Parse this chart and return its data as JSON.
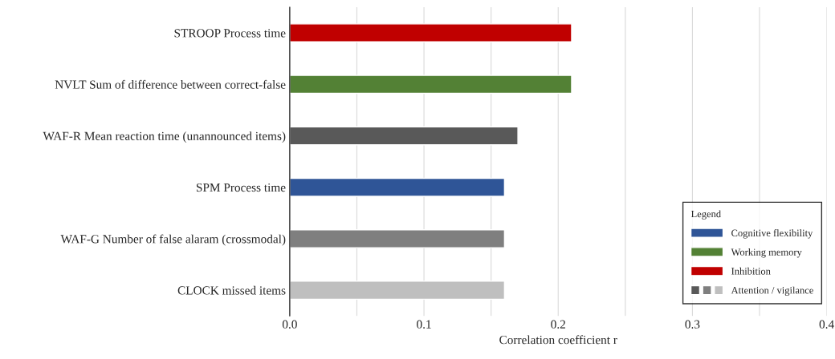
{
  "chart_data": {
    "type": "bar",
    "orientation": "horizontal",
    "categories": [
      "STROOP Process time",
      "NVLT Sum of difference between correct-false",
      "WAF-R Mean reaction time (unannounced items)",
      "SPM Process time",
      "WAF-G Number of false alaram (crossmodal)",
      "CLOCK missed items"
    ],
    "series": [
      {
        "name": "Cognitive flexibility",
        "color": "#2f5597",
        "values": [
          null,
          null,
          null,
          0.16,
          null,
          null
        ]
      },
      {
        "name": "Working memory",
        "color": "#538135",
        "values": [
          null,
          0.21,
          null,
          null,
          null,
          null
        ]
      },
      {
        "name": "Inhibition",
        "color": "#c00000",
        "values": [
          0.21,
          null,
          null,
          null,
          null,
          null
        ]
      },
      {
        "name": "Attention / vigilance",
        "colors": [
          "#595959",
          "#595959",
          "#595959",
          "#595959",
          "#7f7f7f",
          "#bfbfbf"
        ],
        "values": [
          null,
          null,
          0.17,
          null,
          0.16,
          0.16
        ]
      }
    ],
    "xlabel": "Correlation coefficient r",
    "legend_title": "Legend",
    "legend": "bottom right",
    "xlim": [
      0,
      0.4
    ],
    "xticks": [
      {
        "value": 0,
        "label": "0.0"
      },
      {
        "value": 0.05,
        "label": null
      },
      0.1,
      {
        "value": 0.15,
        "label": null
      },
      0.2,
      {
        "value": 0.25,
        "label": null
      },
      0.3,
      {
        "value": 0.35,
        "label": null
      },
      0.4
    ],
    "grid": "x"
  }
}
